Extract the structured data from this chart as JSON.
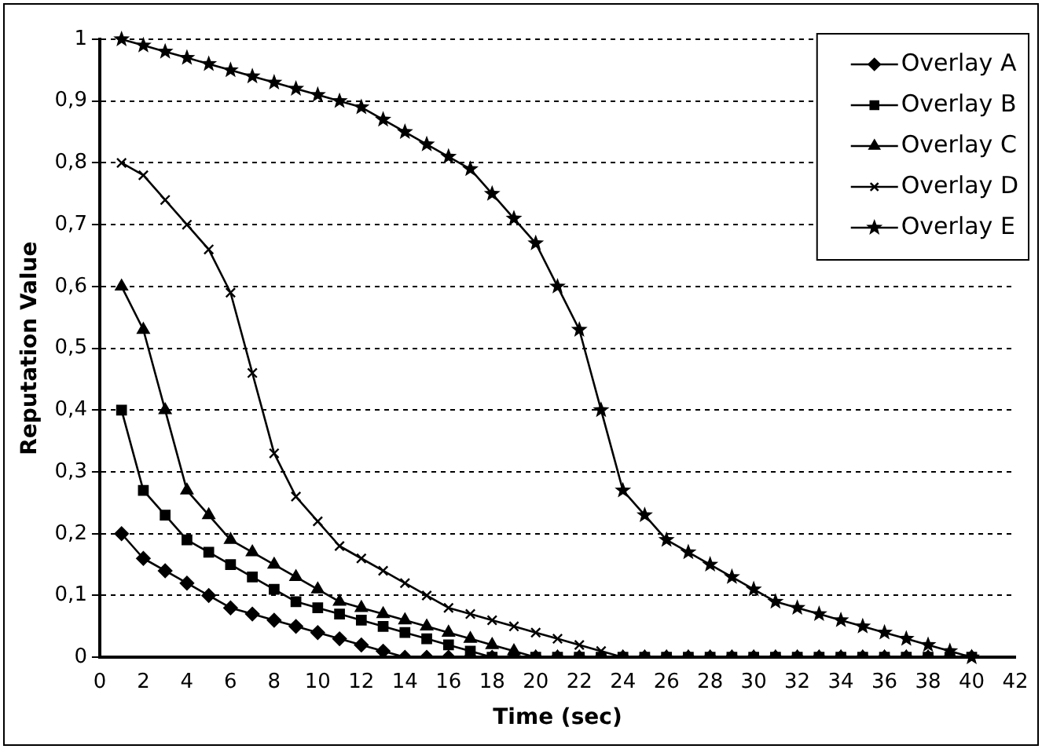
{
  "chart_data": {
    "type": "line",
    "xlabel": "Time (sec)",
    "ylabel": "Reputation Value",
    "x": [
      1,
      2,
      3,
      4,
      5,
      6,
      7,
      8,
      9,
      10,
      11,
      12,
      13,
      14,
      15,
      16,
      17,
      18,
      19,
      20,
      21,
      22,
      23,
      24,
      25,
      26,
      27,
      28,
      29,
      30,
      31,
      32,
      33,
      34,
      35,
      36,
      37,
      38,
      39,
      40
    ],
    "series": [
      {
        "name": "Overlay A",
        "color": "#000000",
        "marker": "diamond",
        "values": [
          0.2,
          0.16,
          0.14,
          0.12,
          0.1,
          0.08,
          0.07,
          0.06,
          0.05,
          0.04,
          0.03,
          0.02,
          0.01,
          0,
          0,
          0,
          0,
          0,
          0,
          0,
          0,
          0,
          0,
          0,
          0,
          0,
          0,
          0,
          0,
          0,
          0,
          0,
          0,
          0,
          0,
          0,
          0,
          0,
          0,
          0
        ]
      },
      {
        "name": "Overlay B",
        "color": "#000000",
        "marker": "square",
        "values": [
          0.4,
          0.27,
          0.23,
          0.19,
          0.17,
          0.15,
          0.13,
          0.11,
          0.09,
          0.08,
          0.07,
          0.06,
          0.05,
          0.04,
          0.03,
          0.02,
          0.01,
          0,
          0,
          0,
          0,
          0,
          0,
          0,
          0,
          0,
          0,
          0,
          0,
          0,
          0,
          0,
          0,
          0,
          0,
          0,
          0,
          0,
          0,
          0
        ]
      },
      {
        "name": "Overlay C",
        "color": "#000000",
        "marker": "triangle",
        "values": [
          0.6,
          0.53,
          0.4,
          0.27,
          0.23,
          0.19,
          0.17,
          0.15,
          0.13,
          0.11,
          0.09,
          0.08,
          0.07,
          0.06,
          0.05,
          0.04,
          0.03,
          0.02,
          0.01,
          0,
          0,
          0,
          0,
          0,
          0,
          0,
          0,
          0,
          0,
          0,
          0,
          0,
          0,
          0,
          0,
          0,
          0,
          0,
          0,
          0
        ]
      },
      {
        "name": "Overlay D",
        "color": "#000000",
        "marker": "cross",
        "values": [
          0.8,
          0.78,
          0.74,
          0.7,
          0.66,
          0.59,
          0.46,
          0.33,
          0.26,
          0.22,
          0.18,
          0.16,
          0.14,
          0.12,
          0.1,
          0.08,
          0.07,
          0.06,
          0.05,
          0.04,
          0.03,
          0.02,
          0.01,
          0,
          0,
          0,
          0,
          0,
          0,
          0,
          0,
          0,
          0,
          0,
          0,
          0,
          0,
          0,
          0,
          0
        ]
      },
      {
        "name": "Overlay E",
        "color": "#000000",
        "marker": "star",
        "values": [
          1,
          0.99,
          0.98,
          0.97,
          0.96,
          0.95,
          0.94,
          0.93,
          0.92,
          0.91,
          0.9,
          0.89,
          0.87,
          0.85,
          0.83,
          0.81,
          0.79,
          0.75,
          0.71,
          0.67,
          0.6,
          0.53,
          0.4,
          0.27,
          0.23,
          0.19,
          0.17,
          0.15,
          0.13,
          0.11,
          0.09,
          0.08,
          0.07,
          0.06,
          0.05,
          0.04,
          0.03,
          0.02,
          0.01,
          0
        ]
      }
    ],
    "xlim": [
      0,
      42
    ],
    "xticks": [
      0,
      2,
      4,
      6,
      8,
      10,
      12,
      14,
      16,
      18,
      20,
      22,
      24,
      26,
      28,
      30,
      32,
      34,
      36,
      38,
      40,
      42
    ],
    "ylim": [
      0,
      1
    ],
    "yticks": [
      0,
      {
        "value": 0.1,
        "label": "0,1"
      },
      {
        "value": 0.2,
        "label": "0,2"
      },
      {
        "value": 0.3,
        "label": "0,3"
      },
      {
        "value": 0.4,
        "label": "0,4"
      },
      {
        "value": 0.5,
        "label": "0,5"
      },
      {
        "value": 0.6,
        "label": "0,6"
      },
      {
        "value": 0.7,
        "label": "0,7"
      },
      {
        "value": 0.8,
        "label": "0,8"
      },
      {
        "value": 0.9,
        "label": "0,9"
      },
      1
    ],
    "grid": "y",
    "legend": "top right",
    "line_style": "solid"
  }
}
